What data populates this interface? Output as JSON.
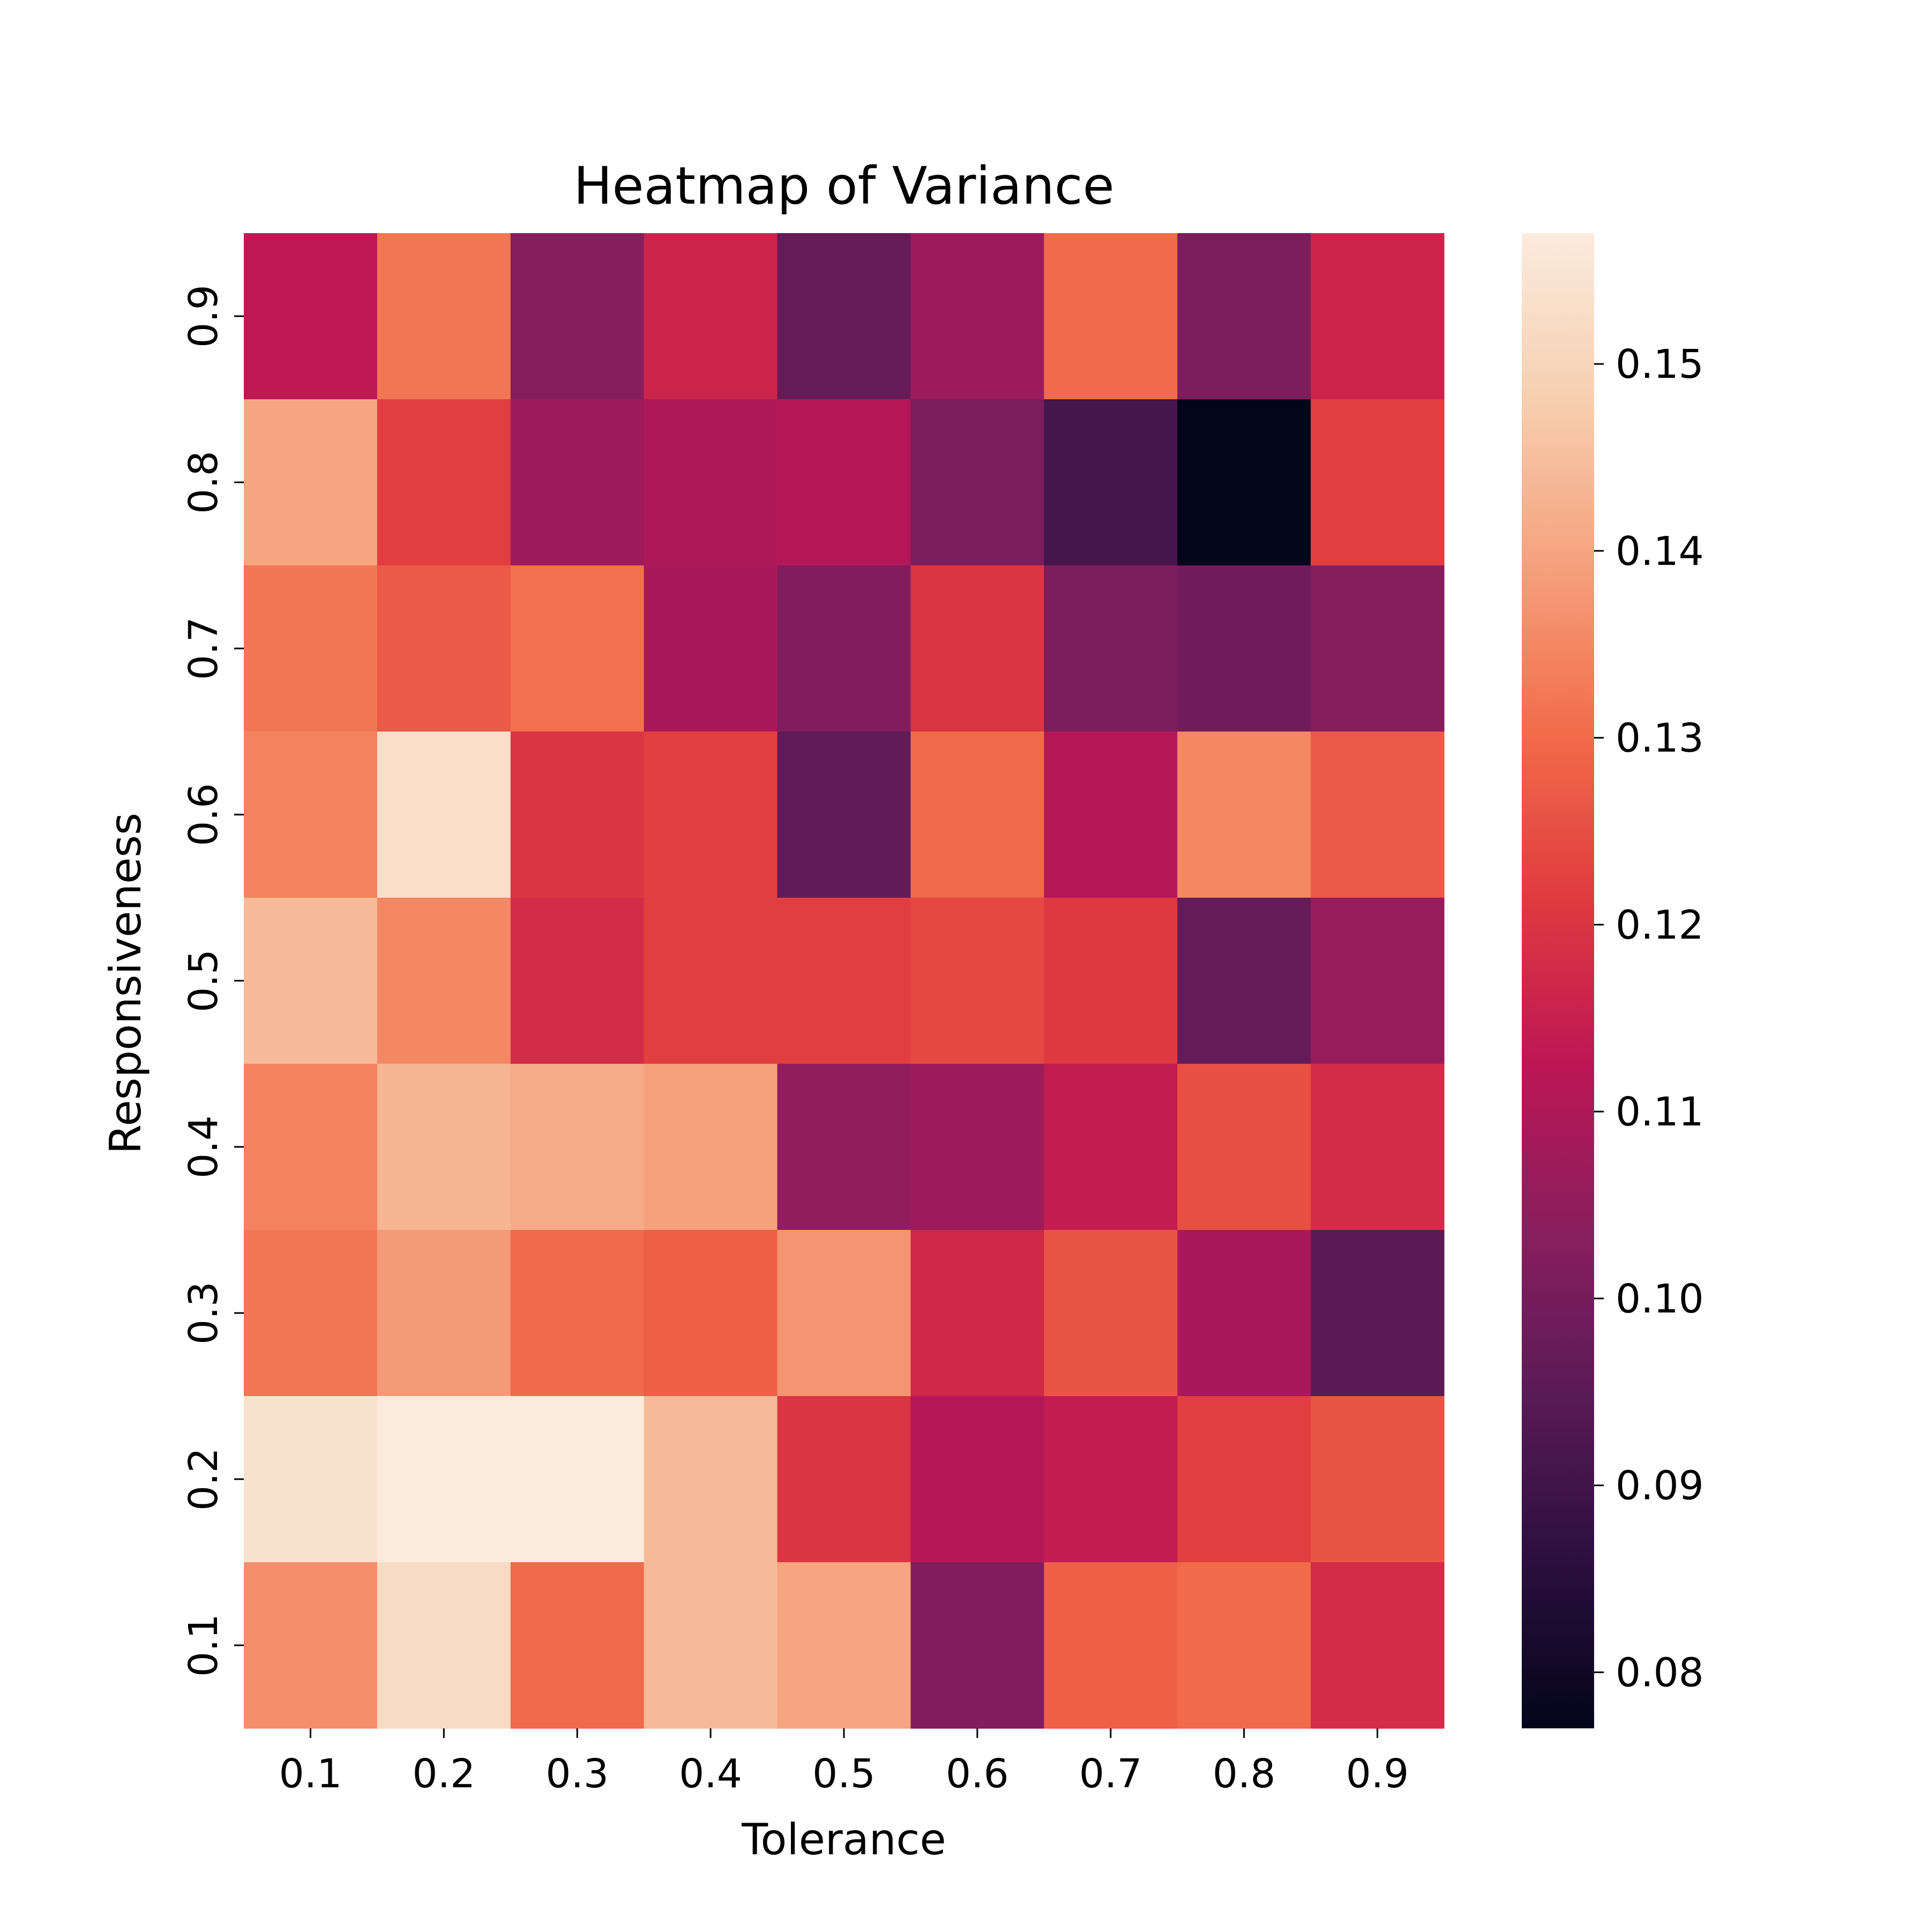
{
  "chart_data": {
    "type": "heatmap",
    "title": "Heatmap of Variance",
    "xlabel": "Tolerance",
    "ylabel": "Responsiveness",
    "x_categories": [
      "0.1",
      "0.2",
      "0.3",
      "0.4",
      "0.5",
      "0.6",
      "0.7",
      "0.8",
      "0.9"
    ],
    "y_categories": [
      "0.9",
      "0.8",
      "0.7",
      "0.6",
      "0.5",
      "0.4",
      "0.3",
      "0.2",
      "0.1"
    ],
    "values": [
      [
        0.113,
        0.132,
        0.103,
        0.116,
        0.097,
        0.107,
        0.13,
        0.101,
        0.116
      ],
      [
        0.14,
        0.122,
        0.107,
        0.11,
        0.111,
        0.101,
        0.091,
        0.077,
        0.122
      ],
      [
        0.132,
        0.127,
        0.131,
        0.109,
        0.102,
        0.12,
        0.101,
        0.099,
        0.103
      ],
      [
        0.134,
        0.153,
        0.12,
        0.122,
        0.096,
        0.13,
        0.111,
        0.135,
        0.127
      ],
      [
        0.144,
        0.135,
        0.118,
        0.122,
        0.122,
        0.124,
        0.121,
        0.097,
        0.106
      ],
      [
        0.134,
        0.143,
        0.141,
        0.139,
        0.105,
        0.107,
        0.114,
        0.125,
        0.118
      ],
      [
        0.132,
        0.138,
        0.13,
        0.128,
        0.137,
        0.117,
        0.126,
        0.109,
        0.095
      ],
      [
        0.154,
        0.157,
        0.157,
        0.144,
        0.12,
        0.111,
        0.114,
        0.122,
        0.126
      ],
      [
        0.136,
        0.152,
        0.13,
        0.144,
        0.14,
        0.102,
        0.128,
        0.13,
        0.118
      ]
    ],
    "colorbar": {
      "vmin": 0.077,
      "vmax": 0.157,
      "ticks": [
        "0.08",
        "0.09",
        "0.10",
        "0.11",
        "0.12",
        "0.13",
        "0.14",
        "0.15"
      ],
      "colormap": "rocket",
      "color_stops": [
        "#03051a",
        "#2b0f3e",
        "#5a1a57",
        "#8a1e5e",
        "#bd1655",
        "#e03b3f",
        "#f26c4a",
        "#f6a17d",
        "#f7cfb0",
        "#faebdd"
      ]
    },
    "grid": false
  }
}
